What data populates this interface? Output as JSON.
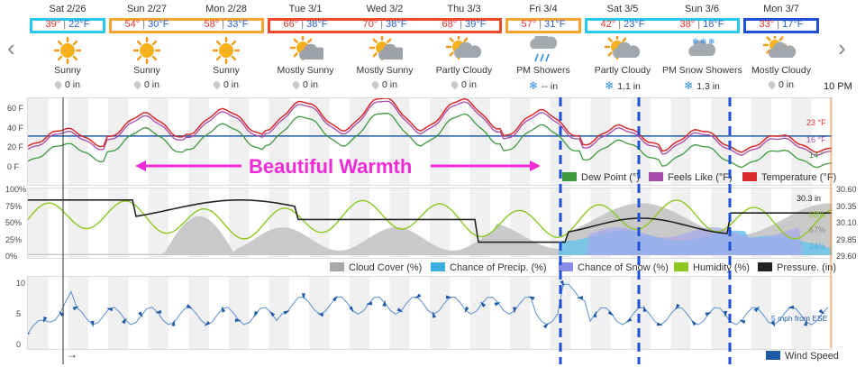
{
  "nav": {
    "prev": "‹",
    "next": "›"
  },
  "days": [
    {
      "date": "Sat 2/26",
      "hi": "39°",
      "lo": "22°F",
      "cond": "Sunny",
      "precip": "0 in",
      "icon": "sun-icon",
      "pico": "drop"
    },
    {
      "date": "Sun 2/27",
      "hi": "54°",
      "lo": "30°F",
      "cond": "Sunny",
      "precip": "0 in",
      "icon": "sun-icon",
      "pico": "drop"
    },
    {
      "date": "Mon 2/28",
      "hi": "58°",
      "lo": "33°F",
      "cond": "Sunny",
      "precip": "0 in",
      "icon": "sun-icon",
      "pico": "drop"
    },
    {
      "date": "Tue 3/1",
      "hi": "66°",
      "lo": "38°F",
      "cond": "Mostly Sunny",
      "precip": "0 in",
      "icon": "mostly-sunny-icon",
      "pico": "drop"
    },
    {
      "date": "Wed 3/2",
      "hi": "70°",
      "lo": "38°F",
      "cond": "Mostly Sunny",
      "precip": "0 in",
      "icon": "mostly-sunny-icon",
      "pico": "drop"
    },
    {
      "date": "Thu 3/3",
      "hi": "68°",
      "lo": "39°F",
      "cond": "Partly Cloudy",
      "precip": "0 in",
      "icon": "partly-cloudy-icon",
      "pico": "drop"
    },
    {
      "date": "Fri 3/4",
      "hi": "57°",
      "lo": "31°F",
      "cond": "PM Showers",
      "precip": "-- in",
      "icon": "showers-icon",
      "pico": "flake"
    },
    {
      "date": "Sat 3/5",
      "hi": "42°",
      "lo": "23°F",
      "cond": "Partly Cloudy",
      "precip": "1.1 in",
      "icon": "partly-cloudy-icon",
      "pico": "flake"
    },
    {
      "date": "Sun 3/6",
      "hi": "38°",
      "lo": "18°F",
      "cond": "PM Snow Showers",
      "precip": "1.3 in",
      "icon": "snow-showers-icon",
      "pico": "flake"
    },
    {
      "date": "Mon 3/7",
      "hi": "33°",
      "lo": "17°F",
      "cond": "Mostly Cloudy",
      "precip": "0 in",
      "icon": "mostly-cloudy-icon",
      "pico": "drop"
    }
  ],
  "groups": [
    {
      "days": [
        0,
        0
      ],
      "color": "#28c8f0"
    },
    {
      "days": [
        1,
        2
      ],
      "color": "#f7a233"
    },
    {
      "days": [
        3,
        5
      ],
      "color": "#ee4a28"
    },
    {
      "days": [
        6,
        6
      ],
      "color": "#f7a233"
    },
    {
      "days": [
        7,
        8
      ],
      "color": "#28c8f0"
    },
    {
      "days": [
        9,
        9
      ],
      "color": "#1e4fd8"
    }
  ],
  "time_label": "10 PM",
  "annotation": {
    "text": "Beautiful Warmth",
    "color": "#ef2bd8"
  },
  "temp_axis": [
    "60 F",
    "40 F",
    "20 F",
    "0 F"
  ],
  "temp_end": {
    "temp": "23 °F",
    "feels": "16 °F",
    "dew": "14 °"
  },
  "temp_legend": [
    {
      "label": "Dew Point (°)",
      "color": "#3d9a3d"
    },
    {
      "label": "Feels Like (°F)",
      "color": "#a84aa8"
    },
    {
      "label": "Temperature (°F)",
      "color": "#d82a2a"
    }
  ],
  "pct_axis": [
    "100%",
    "75%",
    "50%",
    "25%",
    "0%"
  ],
  "pres_axis": [
    "30.60",
    "30.35",
    "30.10",
    "29.85",
    "29.60"
  ],
  "mid_end": {
    "pressure": "30.3 in",
    "humidity": "68%",
    "cloud": "67%",
    "precip": "24%"
  },
  "mid_legend": [
    {
      "label": "Cloud Cover (%)",
      "color": "#a8a8a8"
    },
    {
      "label": "Chance of Precip. (%)",
      "color": "#3aaee0"
    },
    {
      "label": "Chance of Snow (%)",
      "color": "#8a8ae8"
    },
    {
      "label": "Humidity (%)",
      "color": "#8cc820"
    },
    {
      "label": "Pressure. (in)",
      "color": "#222222"
    }
  ],
  "wind_axis": [
    "10",
    "5",
    "0"
  ],
  "wind_end": "5 mph from ESE",
  "wind_legend": {
    "label": "Wind Speed",
    "color": "#1e5aa8"
  },
  "wind_arrow": "→"
}
